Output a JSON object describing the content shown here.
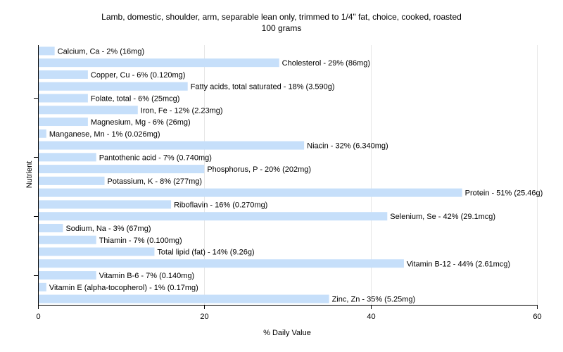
{
  "chart_data": {
    "type": "bar",
    "orientation": "horizontal",
    "title": "Lamb, domestic, shoulder, arm, separable lean only, trimmed to 1/4\" fat, choice, cooked, roasted",
    "subtitle": "100 grams",
    "xlabel": "% Daily Value",
    "ylabel": "Nutrient",
    "xlim": [
      0,
      60
    ],
    "xticks": [
      0,
      20,
      40,
      60
    ],
    "grid": true,
    "bar_color": "#c6dffa",
    "categories": [
      "Calcium, Ca",
      "Cholesterol",
      "Copper, Cu",
      "Fatty acids, total saturated",
      "Folate, total",
      "Iron, Fe",
      "Magnesium, Mg",
      "Manganese, Mn",
      "Niacin",
      "Pantothenic acid",
      "Phosphorus, P",
      "Potassium, K",
      "Protein",
      "Riboflavin",
      "Selenium, Se",
      "Sodium, Na",
      "Thiamin",
      "Total lipid (fat)",
      "Vitamin B-12",
      "Vitamin B-6",
      "Vitamin E (alpha-tocopherol)",
      "Zinc, Zn"
    ],
    "values": [
      2,
      29,
      6,
      18,
      6,
      12,
      6,
      1,
      32,
      7,
      20,
      8,
      51,
      16,
      42,
      3,
      7,
      14,
      44,
      7,
      1,
      35
    ],
    "labels": [
      "Calcium, Ca - 2% (16mg)",
      "Cholesterol - 29% (86mg)",
      "Copper, Cu - 6% (0.120mg)",
      "Fatty acids, total saturated - 18% (3.590g)",
      "Folate, total - 6% (25mcg)",
      "Iron, Fe - 12% (2.23mg)",
      "Magnesium, Mg - 6% (26mg)",
      "Manganese, Mn - 1% (0.026mg)",
      "Niacin - 32% (6.340mg)",
      "Pantothenic acid - 7% (0.740mg)",
      "Phosphorus, P - 20% (202mg)",
      "Potassium, K - 8% (277mg)",
      "Protein - 51% (25.46g)",
      "Riboflavin - 16% (0.270mg)",
      "Selenium, Se - 42% (29.1mcg)",
      "Sodium, Na - 3% (67mg)",
      "Thiamin - 7% (0.100mg)",
      "Total lipid (fat) - 14% (9.26g)",
      "Vitamin B-12 - 44% (2.61mcg)",
      "Vitamin B-6 - 7% (0.140mg)",
      "Vitamin E (alpha-tocopherol) - 1% (0.17mg)",
      "Zinc, Zn - 35% (5.25mg)"
    ]
  }
}
